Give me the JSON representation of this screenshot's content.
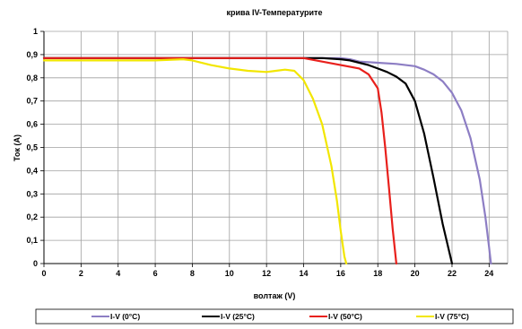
{
  "chart_data": {
    "type": "line",
    "title": "крива IV-Температурите",
    "xlabel": "волтаж (V)",
    "ylabel": "Ток (A)",
    "xlim": [
      0,
      25
    ],
    "ylim": [
      0,
      1
    ],
    "x_ticks": [
      0,
      2,
      4,
      6,
      8,
      10,
      12,
      14,
      16,
      18,
      20,
      22,
      24
    ],
    "x_tick_labels": [
      "0",
      "2",
      "4",
      "6",
      "8",
      "10",
      "12",
      "14",
      "16",
      "18",
      "20",
      "22",
      "24"
    ],
    "y_ticks": [
      0,
      0.1,
      0.2,
      0.3,
      0.4,
      0.5,
      0.6,
      0.7,
      0.8,
      0.9,
      1
    ],
    "y_tick_labels": [
      "0",
      "0,1",
      "0,2",
      "0,3",
      "0,4",
      "0,5",
      "0,6",
      "0,7",
      "0,8",
      "0,9",
      "1"
    ],
    "grid": true,
    "legend_position": "bottom",
    "series": [
      {
        "name": "I-V (0°C)",
        "color": "#8d7ec4",
        "x": [
          0,
          2,
          4,
          6,
          8,
          10,
          12,
          14,
          15,
          16,
          16.5,
          17,
          18,
          19,
          20,
          20.5,
          21,
          21.5,
          22,
          22.5,
          23,
          23.5,
          23.8,
          24,
          24.1
        ],
        "y": [
          0.885,
          0.885,
          0.885,
          0.885,
          0.885,
          0.885,
          0.885,
          0.885,
          0.885,
          0.885,
          0.88,
          0.87,
          0.865,
          0.86,
          0.85,
          0.835,
          0.815,
          0.785,
          0.735,
          0.66,
          0.54,
          0.36,
          0.2,
          0.07,
          0
        ]
      },
      {
        "name": "I-V (25°C)",
        "color": "#000000",
        "x": [
          0,
          2,
          4,
          6,
          8,
          10,
          12,
          14,
          15,
          16,
          16.5,
          17,
          17.5,
          18,
          18.5,
          19,
          19.5,
          20,
          20.5,
          21,
          21.5,
          22
        ],
        "y": [
          0.885,
          0.885,
          0.885,
          0.885,
          0.885,
          0.885,
          0.885,
          0.885,
          0.885,
          0.88,
          0.875,
          0.865,
          0.855,
          0.84,
          0.825,
          0.805,
          0.775,
          0.7,
          0.56,
          0.37,
          0.17,
          0
        ]
      },
      {
        "name": "I-V (50°C)",
        "color": "#e8201c",
        "x": [
          0,
          2,
          4,
          6,
          8,
          10,
          12,
          14,
          15,
          16,
          17,
          17.5,
          18,
          18.2,
          18.4,
          18.6,
          18.8,
          19
        ],
        "y": [
          0.885,
          0.885,
          0.885,
          0.885,
          0.885,
          0.885,
          0.885,
          0.885,
          0.87,
          0.855,
          0.84,
          0.815,
          0.755,
          0.65,
          0.5,
          0.33,
          0.15,
          0
        ]
      },
      {
        "name": "I-V (75°C)",
        "color": "#f2e600",
        "x": [
          0,
          2,
          4,
          6,
          7.5,
          8,
          9,
          10,
          11,
          12,
          12.5,
          13,
          13.5,
          14,
          14.5,
          15,
          15.5,
          15.8,
          16,
          16.2,
          16.3
        ],
        "y": [
          0.875,
          0.875,
          0.875,
          0.875,
          0.88,
          0.875,
          0.855,
          0.84,
          0.83,
          0.825,
          0.83,
          0.835,
          0.83,
          0.79,
          0.71,
          0.6,
          0.42,
          0.27,
          0.14,
          0.03,
          0
        ]
      }
    ]
  }
}
